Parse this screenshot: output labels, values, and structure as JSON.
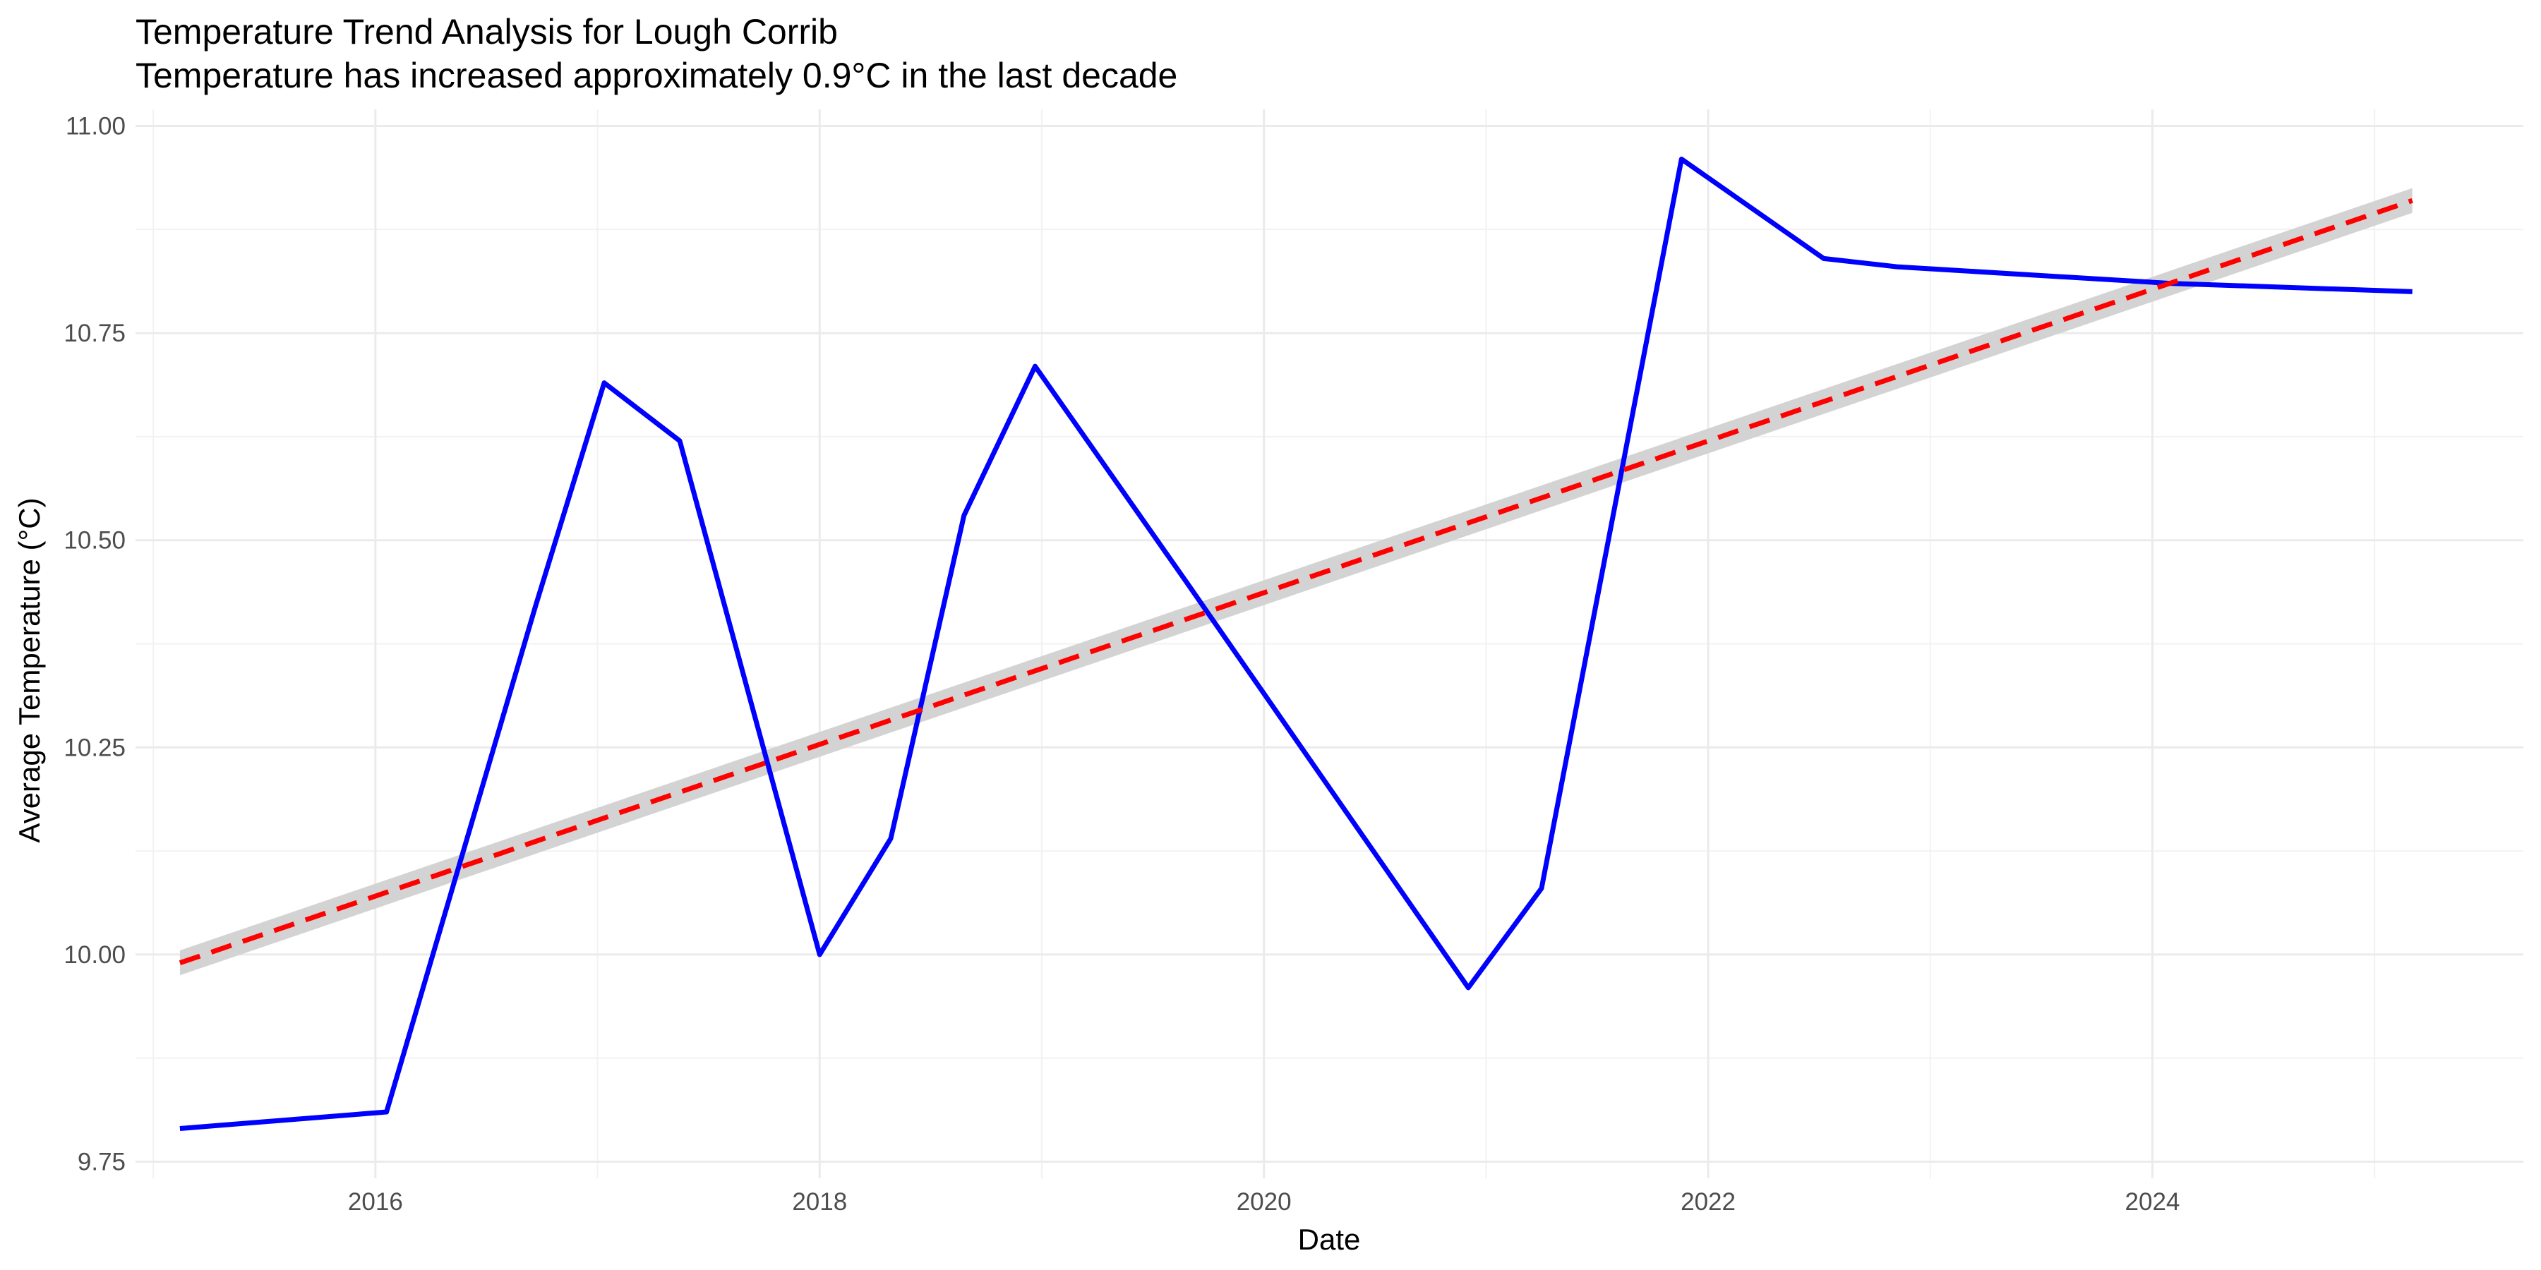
{
  "chart_data": {
    "type": "line",
    "title": "Temperature Trend Analysis for Lough Corrib",
    "subtitle": "Temperature has increased approximately 0.9°C in the last decade",
    "xlabel": "Date",
    "ylabel": "Average Temperature (°C)",
    "xlim": [
      2014.92,
      2025.67
    ],
    "ylim": [
      9.73,
      11.02
    ],
    "x_ticks": [
      2016,
      2018,
      2020,
      2022,
      2024
    ],
    "x_tick_labels": [
      "2016",
      "2018",
      "2020",
      "2022",
      "2024"
    ],
    "y_ticks": [
      9.75,
      10.0,
      10.25,
      10.5,
      10.75,
      11.0
    ],
    "y_tick_labels": [
      "9.75",
      "10.00",
      "10.25",
      "10.50",
      "10.75",
      "11.00"
    ],
    "grid": true,
    "series": [
      {
        "color": "#0000ff",
        "style": "solid",
        "x": [
          2015.12,
          2016.05,
          2016.72,
          2017.03,
          2017.37,
          2018.0,
          2018.32,
          2018.65,
          2018.97,
          2019.65,
          2020.92,
          2021.25,
          2021.88,
          2022.52,
          2022.85,
          2024.08,
          2025.17
        ],
        "y": [
          9.79,
          9.81,
          10.42,
          10.69,
          10.62,
          10.0,
          10.14,
          10.53,
          10.71,
          10.45,
          9.96,
          10.08,
          10.96,
          10.84,
          10.83,
          10.81,
          10.8
        ]
      },
      {
        "color": "#ff0000",
        "style": "dashed",
        "band_color": "#d3d3d3",
        "x": [
          2015.12,
          2025.17
        ],
        "y": [
          9.99,
          10.91
        ],
        "band_halfwidth": 0.015
      }
    ]
  }
}
